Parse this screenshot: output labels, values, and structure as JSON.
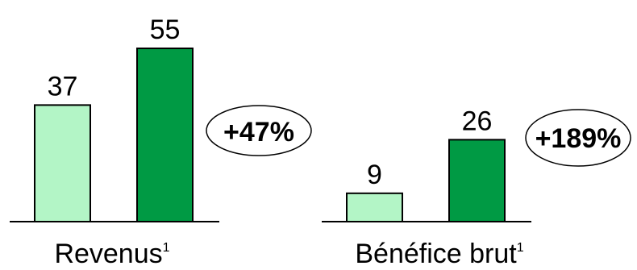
{
  "chart_data": [
    {
      "type": "bar",
      "categories": [
        "",
        ""
      ],
      "values": [
        37,
        55
      ],
      "data_labels": [
        "37",
        "55"
      ],
      "colors": [
        "#b3f5c6",
        "#009a44"
      ],
      "change_badge": "+47%",
      "xlabel": "Revenus",
      "xlabel_superscript": "1",
      "grid": false
    },
    {
      "type": "bar",
      "categories": [
        "",
        ""
      ],
      "values": [
        9,
        26
      ],
      "data_labels": [
        "9",
        "26"
      ],
      "colors": [
        "#b3f5c6",
        "#009a44"
      ],
      "change_badge": "+189%",
      "xlabel": "Bénéfice brut",
      "xlabel_superscript": "1",
      "grid": false
    }
  ]
}
